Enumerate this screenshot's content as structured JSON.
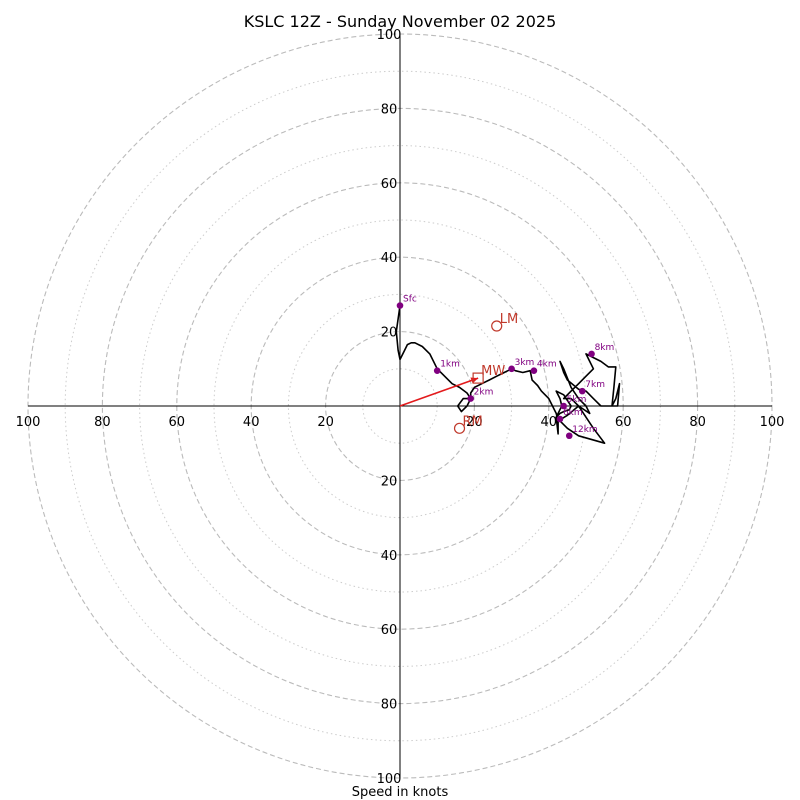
{
  "chart_data": {
    "type": "hodograph",
    "title": "KSLC 12Z - Sunday November 02 2025",
    "xlabel": "Speed in knots",
    "range": 100,
    "ring_major": [
      20,
      40,
      60,
      80,
      100
    ],
    "ring_minor": [
      10,
      30,
      50,
      70,
      90
    ],
    "ticks": {
      "top": [
        "100",
        "80",
        "60",
        "40",
        "20"
      ],
      "bottom": [
        "20",
        "40",
        "60",
        "80",
        "100"
      ],
      "left": [
        "100",
        "80",
        "60",
        "40",
        "20"
      ],
      "right": [
        "40",
        "60",
        "80",
        "100"
      ],
      "right_inner": "20"
    },
    "trace": [
      [
        0,
        27
      ],
      [
        -1,
        20
      ],
      [
        -0.5,
        15
      ],
      [
        0,
        12.5
      ],
      [
        1,
        14.5
      ],
      [
        2,
        16.5
      ],
      [
        3,
        17
      ],
      [
        4,
        17
      ],
      [
        6,
        16
      ],
      [
        8,
        14
      ],
      [
        10,
        10
      ],
      [
        12,
        8
      ],
      [
        14,
        6
      ],
      [
        16,
        5
      ],
      [
        18,
        3.5
      ],
      [
        19,
        2
      ],
      [
        18,
        0
      ],
      [
        16.5,
        -1.5
      ],
      [
        15.5,
        0
      ],
      [
        17,
        2
      ],
      [
        19,
        2
      ],
      [
        19,
        3.5
      ],
      [
        20,
        5
      ],
      [
        22,
        6
      ],
      [
        24,
        7
      ],
      [
        26,
        8
      ],
      [
        27,
        8.5
      ],
      [
        28,
        9
      ],
      [
        29,
        9.5
      ],
      [
        30,
        10
      ],
      [
        31,
        9.5
      ],
      [
        33,
        9
      ],
      [
        35,
        9.5
      ],
      [
        35.5,
        7
      ],
      [
        36,
        6.5
      ],
      [
        37,
        5.5
      ],
      [
        38,
        4
      ],
      [
        39,
        3
      ],
      [
        40,
        2
      ],
      [
        41,
        0
      ],
      [
        42,
        -2
      ],
      [
        42.5,
        -4
      ],
      [
        42.5,
        -7.5
      ],
      [
        42,
        -3
      ],
      [
        43,
        -2
      ],
      [
        44,
        -1.5
      ],
      [
        45.5,
        -1
      ],
      [
        46,
        0
      ],
      [
        44,
        3
      ],
      [
        42,
        4
      ],
      [
        43,
        2
      ],
      [
        43.5,
        0
      ],
      [
        42,
        -3
      ],
      [
        42.5,
        -3
      ],
      [
        43,
        -4
      ],
      [
        45,
        -6
      ],
      [
        48,
        -8
      ],
      [
        55,
        -10
      ],
      [
        52,
        -6
      ],
      [
        50,
        -3
      ],
      [
        48,
        0
      ],
      [
        46,
        2
      ],
      [
        44,
        2
      ],
      [
        46,
        4
      ],
      [
        48,
        6
      ],
      [
        50,
        8
      ],
      [
        52,
        10
      ],
      [
        51,
        12
      ],
      [
        50,
        14
      ],
      [
        52,
        13
      ],
      [
        54,
        12
      ],
      [
        56,
        10.5
      ],
      [
        58,
        10.5
      ],
      [
        57.5,
        5
      ],
      [
        57,
        0
      ],
      [
        58,
        2
      ],
      [
        59,
        6
      ],
      [
        58.5,
        0
      ],
      [
        56,
        0
      ],
      [
        54,
        0
      ],
      [
        52,
        2
      ],
      [
        50,
        4
      ],
      [
        48,
        4.5
      ],
      [
        45,
        7
      ],
      [
        44,
        9
      ],
      [
        43,
        12
      ],
      [
        44,
        10
      ],
      [
        46,
        5
      ],
      [
        48,
        2
      ],
      [
        50,
        0
      ],
      [
        51,
        -2
      ],
      [
        48,
        0
      ],
      [
        45,
        -2.5
      ],
      [
        42.5,
        -4
      ]
    ],
    "height_markers": [
      {
        "label": "Sfc",
        "x": 0,
        "y": 27
      },
      {
        "label": "1km",
        "x": 10,
        "y": 9.5
      },
      {
        "label": "2km",
        "x": 19,
        "y": 2
      },
      {
        "label": "3km",
        "x": 30,
        "y": 10
      },
      {
        "label": "4km",
        "x": 36,
        "y": 9.5
      },
      {
        "label": "5km",
        "x": 44,
        "y": 0
      },
      {
        "label": "6km",
        "x": 43,
        "y": -3.5
      },
      {
        "label": "7km",
        "x": 49,
        "y": 4
      },
      {
        "label": "8km",
        "x": 51.5,
        "y": 14
      },
      {
        "label": "12km",
        "x": 45.5,
        "y": -8
      }
    ],
    "motions": [
      {
        "label": "LM",
        "x": 26,
        "y": 21.5,
        "marker": "circle"
      },
      {
        "label": "MW",
        "x": 21,
        "y": 7.5,
        "marker": "square"
      },
      {
        "label": "RM",
        "x": 16,
        "y": -6,
        "marker": "circle"
      }
    ],
    "shear_vector": {
      "from": [
        0,
        0
      ],
      "to": [
        21,
        7.5
      ]
    },
    "colors": {
      "trace": "#000000",
      "markers": "#800080",
      "motion": "#c0392b",
      "shear": "#e31a1c",
      "ring_major": "#bbbbbb",
      "ring_minor": "#cccccc"
    }
  }
}
